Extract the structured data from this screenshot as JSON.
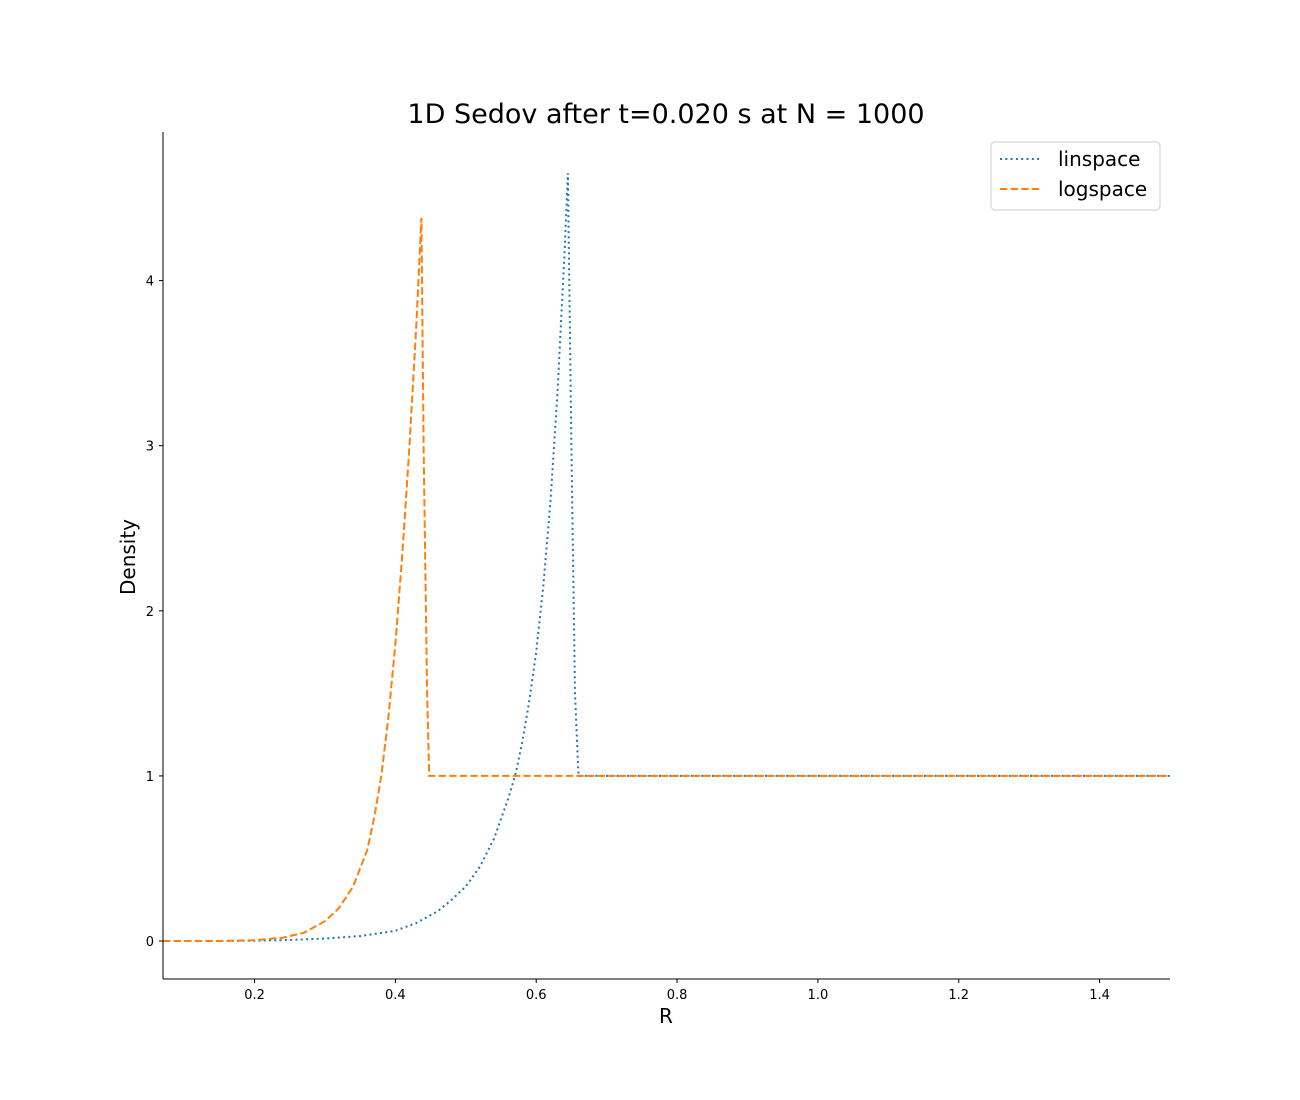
{
  "chart_data": {
    "type": "line",
    "title": "1D Sedov after t=0.020 s at N = 1000",
    "xlabel": "R",
    "ylabel": "Density",
    "xlim": [
      0.07,
      1.5
    ],
    "ylim": [
      -0.23,
      4.9
    ],
    "xticks": [
      0.2,
      0.4,
      0.6,
      0.8,
      1.0,
      1.2,
      1.4
    ],
    "xtick_labels": [
      "0.2",
      "0.4",
      "0.6",
      "0.8",
      "1.0",
      "1.2",
      "1.4"
    ],
    "yticks": [
      0,
      1,
      2,
      3,
      4
    ],
    "ytick_labels": [
      "0",
      "1",
      "2",
      "3",
      "4"
    ],
    "grid": false,
    "legend_position": "top-right",
    "series": [
      {
        "name": "linspace",
        "color": "#1f77b4",
        "style": "dotted",
        "x": [
          0.07,
          0.15,
          0.2,
          0.25,
          0.3,
          0.35,
          0.4,
          0.43,
          0.46,
          0.48,
          0.5,
          0.52,
          0.54,
          0.56,
          0.57,
          0.58,
          0.59,
          0.6,
          0.61,
          0.62,
          0.63,
          0.64,
          0.645,
          0.65,
          0.655,
          0.66,
          0.8,
          1.0,
          1.2,
          1.5
        ],
        "y": [
          0.0,
          0.0,
          0.002,
          0.006,
          0.015,
          0.03,
          0.062,
          0.11,
          0.18,
          0.25,
          0.33,
          0.45,
          0.62,
          0.86,
          1.0,
          1.2,
          1.45,
          1.75,
          2.15,
          2.65,
          3.3,
          4.15,
          4.65,
          3.0,
          1.5,
          1.0,
          1.0,
          1.0,
          1.0,
          1.0
        ]
      },
      {
        "name": "logspace",
        "color": "#ff7f0e",
        "style": "dashed",
        "x": [
          0.07,
          0.15,
          0.2,
          0.24,
          0.27,
          0.3,
          0.32,
          0.34,
          0.36,
          0.37,
          0.38,
          0.39,
          0.4,
          0.41,
          0.42,
          0.43,
          0.437,
          0.44,
          0.445,
          0.448,
          0.6,
          0.8,
          1.0,
          1.2,
          1.5
        ],
        "y": [
          0.0,
          0.0,
          0.005,
          0.02,
          0.05,
          0.12,
          0.2,
          0.33,
          0.55,
          0.75,
          1.0,
          1.35,
          1.8,
          2.35,
          3.0,
          3.75,
          4.38,
          3.0,
          1.5,
          1.0,
          1.0,
          1.0,
          1.0,
          1.0,
          1.0
        ]
      }
    ]
  }
}
